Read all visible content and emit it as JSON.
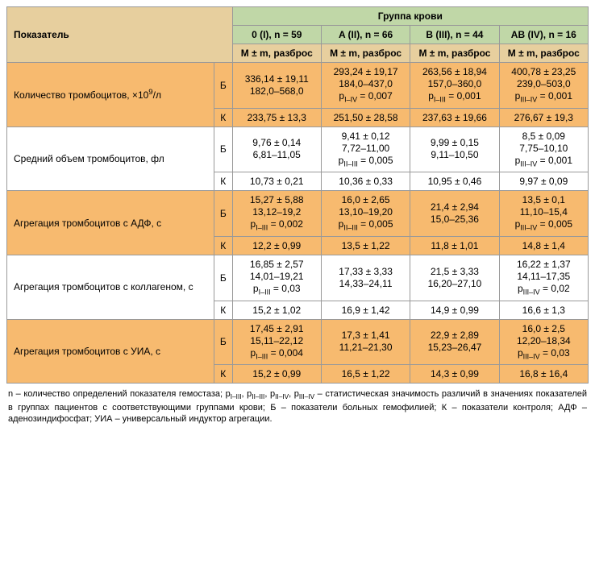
{
  "header": {
    "param_label": "Показатель",
    "group_label": "Группа крови",
    "groups": [
      "0 (I), n = 59",
      "A (II), n = 66",
      "B (III), n = 44",
      "AB (IV), n = 16"
    ],
    "sub": "M ± m, разброс"
  },
  "bk": {
    "b": "Б",
    "k": "К"
  },
  "colors": {
    "header_green": "#c0d7a7",
    "header_tan": "#e7cf9e",
    "row_stripe": "#f7ba6f",
    "row_plain": "#ffffff",
    "border": "#999999",
    "text": "#000000",
    "background": "#ffffff"
  },
  "typography": {
    "font_family": "Arial, sans-serif",
    "font_size_pt": 9,
    "footnote_size_pt": 8
  },
  "rows": [
    {
      "name": "Количество тромбоцитов, ×10⁹/л",
      "stripe": true,
      "b": [
        [
          "336,14 ± 19,11",
          "182,0–568,0"
        ],
        [
          "293,24 ± 19,17",
          "184,0–437,0",
          "pI–IV = 0,007"
        ],
        [
          "263,56 ± 18,94",
          "157,0–360,0",
          "pI–III = 0,001"
        ],
        [
          "400,78 ± 23,25",
          "239,0–503,0",
          "pIII–IV = 0,001"
        ]
      ],
      "k": [
        "233,75 ± 13,3",
        "251,50 ± 28,58",
        "237,63 ± 19,66",
        "276,67 ± 19,3"
      ]
    },
    {
      "name": "Средний объем тромбоцитов, фл",
      "stripe": false,
      "b": [
        [
          "9,76 ± 0,14",
          "6,81–11,05"
        ],
        [
          "9,41 ± 0,12",
          "7,72–11,00",
          "pII–III = 0,005"
        ],
        [
          "9,99 ± 0,15",
          "9,11–10,50"
        ],
        [
          "8,5 ± 0,09",
          "7,75–10,10",
          "pIII–IV = 0,001"
        ]
      ],
      "k": [
        "10,73 ± 0,21",
        "10,36 ± 0,33",
        "10,95 ± 0,46",
        "9,97 ± 0,09"
      ]
    },
    {
      "name": "Агрегация тромбоцитов с АДФ, с",
      "stripe": true,
      "b": [
        [
          "15,27 ± 5,88",
          "13,12–19,2",
          "pI–III = 0,002"
        ],
        [
          "16,0 ± 2,65",
          "13,10–19,20",
          "pII–III = 0,005"
        ],
        [
          "21,4 ± 2,94",
          "15,0–25,36"
        ],
        [
          "13,5 ± 0,1",
          "11,10–15,4",
          "pIII–IV = 0,005"
        ]
      ],
      "k": [
        "12,2 ± 0,99",
        "13,5 ± 1,22",
        "11,8 ± 1,01",
        "14,8 ± 1,4"
      ]
    },
    {
      "name": "Агрегация тромбоцитов с коллагеном, с",
      "stripe": false,
      "b": [
        [
          "16,85 ± 2,57",
          "14,01–19,21",
          "pI–III = 0,03"
        ],
        [
          "17,33 ± 3,33",
          "14,33–24,11"
        ],
        [
          "21,5 ± 3,33",
          "16,20–27,10"
        ],
        [
          "16,22 ± 1,37",
          "14,11–17,35",
          "pIII–IV = 0,02"
        ]
      ],
      "k": [
        "15,2 ± 1,02",
        "16,9 ± 1,42",
        "14,9 ± 0,99",
        "16,6 ± 1,3"
      ]
    },
    {
      "name": "Агрегация тромбоцитов с УИА, с",
      "stripe": true,
      "b": [
        [
          "17,45 ± 2,91",
          "15,11–22,12",
          "pI–III = 0,004"
        ],
        [
          "17,3 ± 1,41",
          "11,21–21,30"
        ],
        [
          "22,9 ± 2,89",
          "15,23–26,47"
        ],
        [
          "16,0 ± 2,5",
          "12,20–18,34",
          "pIII–IV = 0,03"
        ]
      ],
      "k": [
        "15,2 ± 0,99",
        "16,5 ± 1,22",
        "14,3 ± 0,99",
        "16,8 ± 16,4"
      ]
    }
  ],
  "footnote": "n – количество определений показателя гемостаза; pI–III, pII–III, pII–IV, pIII–IV – статистическая значимость различий в значениях показателей в группах пациентов с соответствующими группами крови; Б – показатели больных гемофилией; К – показатели контроля; АДФ – аденозиндифосфат; УИА – универсальный индуктор агрегации."
}
